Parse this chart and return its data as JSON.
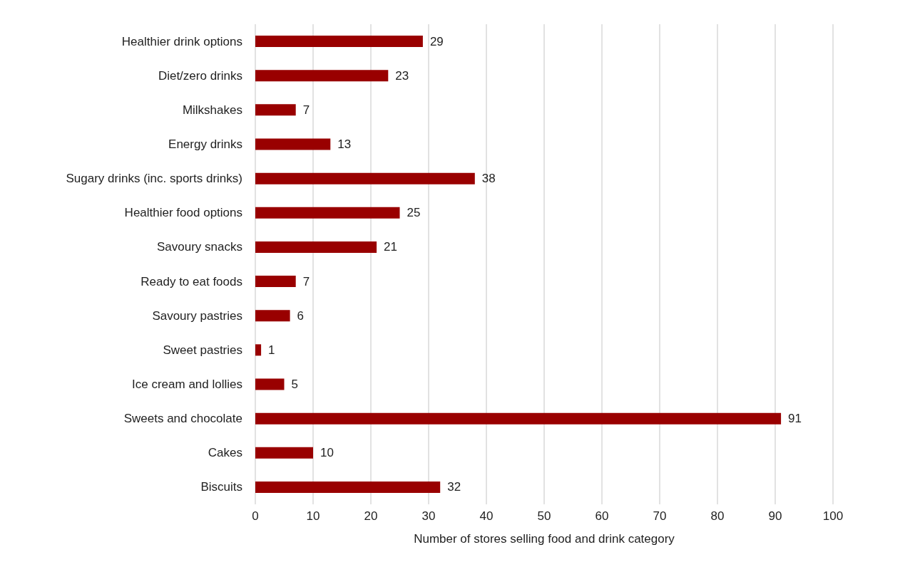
{
  "chart_data": {
    "type": "bar",
    "orientation": "horizontal",
    "xlabel": "Number of stores selling food and drink category",
    "categories": [
      "Healthier drink options",
      "Diet/zero drinks",
      "Milkshakes",
      "Energy drinks",
      "Sugary drinks (inc. sports drinks)",
      "Healthier food options",
      "Savoury snacks",
      "Ready to eat foods",
      "Savoury pastries",
      "Sweet pastries",
      "Ice cream and lollies",
      "Sweets and chocolate",
      "Cakes",
      "Biscuits"
    ],
    "values": [
      29,
      23,
      7,
      13,
      38,
      25,
      21,
      7,
      6,
      1,
      5,
      91,
      10,
      32
    ],
    "color": "#990000",
    "data_labels": true,
    "grid": "x",
    "xlim": [
      0,
      100
    ],
    "xticks": [
      0,
      10,
      20,
      30,
      40,
      50,
      60,
      70,
      80,
      90,
      100
    ]
  }
}
